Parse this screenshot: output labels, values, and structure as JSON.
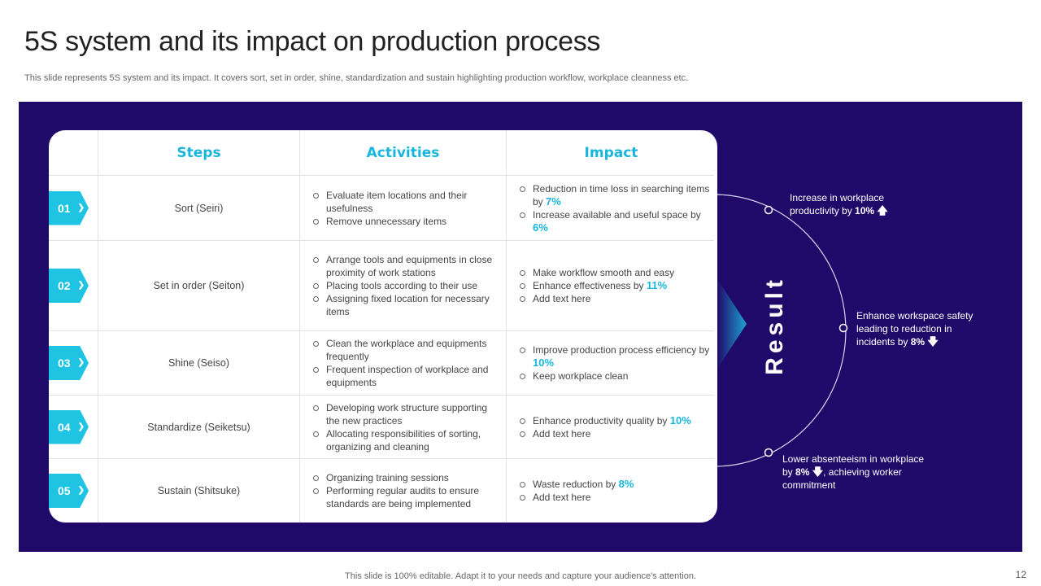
{
  "title": "5S system and its impact on production process",
  "subtitle": "This slide represents 5S system and its impact. It covers sort, set in order, shine, standardization and sustain highlighting production workflow, workplace cleanness etc.",
  "table": {
    "headers": {
      "steps": "Steps",
      "activities": "Activities",
      "impact": "Impact"
    },
    "rows": [
      {
        "num": "01",
        "step": "Sort (Seiri)",
        "activities": [
          "Evaluate item locations and their usefulness",
          "Remove unnecessary items"
        ],
        "impact": [
          {
            "text": "Reduction in time loss in searching items by ",
            "value": "7%"
          },
          {
            "text": "Increase available and useful space by ",
            "value": "6%"
          }
        ]
      },
      {
        "num": "02",
        "step": "Set in order (Seiton)",
        "activities": [
          "Arrange tools and equipments in close proximity of work stations",
          "Placing tools according to their use",
          "Assigning fixed location for necessary items"
        ],
        "impact": [
          {
            "text": "Make workflow smooth and easy",
            "value": ""
          },
          {
            "text": "Enhance effectiveness by ",
            "value": "11%"
          },
          {
            "text": "Add text here",
            "value": ""
          }
        ]
      },
      {
        "num": "03",
        "step": "Shine (Seiso)",
        "activities": [
          "Clean the workplace and equipments frequently",
          "Frequent inspection of workplace and equipments"
        ],
        "impact": [
          {
            "text": "Improve production process efficiency by ",
            "value": "10%"
          },
          {
            "text": "Keep workplace clean",
            "value": ""
          }
        ]
      },
      {
        "num": "04",
        "step": "Standardize (Seiketsu)",
        "activities": [
          "Developing work structure supporting the new practices",
          "Allocating responsibilities of sorting, organizing and cleaning"
        ],
        "impact": [
          {
            "text": "Enhance productivity quality by ",
            "value": "10%"
          },
          {
            "text": "Add text here",
            "value": ""
          }
        ]
      },
      {
        "num": "05",
        "step": "Sustain (Shitsuke)",
        "activities": [
          "Organizing training sessions",
          "Performing regular audits to ensure standards are being implemented"
        ],
        "impact": [
          {
            "text": "Waste reduction by ",
            "value": "8%"
          },
          {
            "text": "Add text here",
            "value": ""
          }
        ]
      }
    ]
  },
  "result": {
    "label": "Result",
    "items": [
      {
        "line1": "Increase in workplace",
        "line2_pre": "productivity by ",
        "value": "10%",
        "arrow": "up",
        "rest": ""
      },
      {
        "line1": "Enhance workspace safety leading to reduction in",
        "line2_pre": "incidents by ",
        "value": "8%",
        "arrow": "down",
        "rest": ""
      },
      {
        "line1": "Lower absenteeism in workplace",
        "line2_pre": "by ",
        "value": "8%",
        "arrow": "down",
        "rest": ", achieving worker commitment"
      }
    ]
  },
  "colors": {
    "panel": "#1f0a6a",
    "accent": "#1ec4e2",
    "highlight": "#18b6dd"
  },
  "footer": "This slide is 100% editable. Adapt it to your needs and capture your audience's attention.",
  "page_number": "12"
}
